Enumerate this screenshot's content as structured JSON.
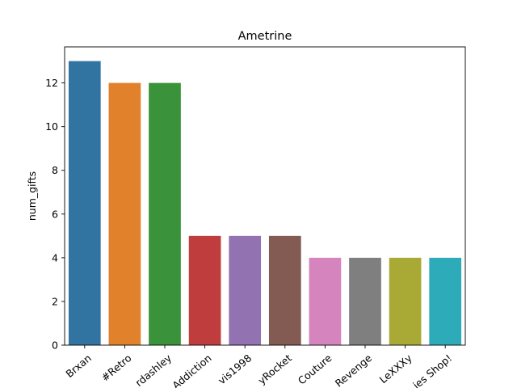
{
  "chart_data": {
    "type": "bar",
    "title": "Ametrine",
    "xlabel": "",
    "ylabel": "num_gifts",
    "categories": [
      "Brxan",
      "#Retro",
      "rdashley",
      "Addiction",
      "vis1998",
      "yRocket",
      "Couture",
      "Revenge",
      "LeXXXy",
      "ies Shop!"
    ],
    "values": [
      13,
      12,
      12,
      5,
      5,
      5,
      4,
      4,
      4,
      4
    ],
    "colors": [
      "#3274a1",
      "#e1812c",
      "#3a923a",
      "#c03d3e",
      "#9372b2",
      "#845b53",
      "#d684bd",
      "#7f7f7f",
      "#a9aa35",
      "#2eabb8"
    ],
    "yticks": [
      0,
      2,
      4,
      6,
      8,
      10,
      12
    ],
    "ylim": [
      0,
      13.65
    ],
    "grid": false,
    "legend": false
  }
}
